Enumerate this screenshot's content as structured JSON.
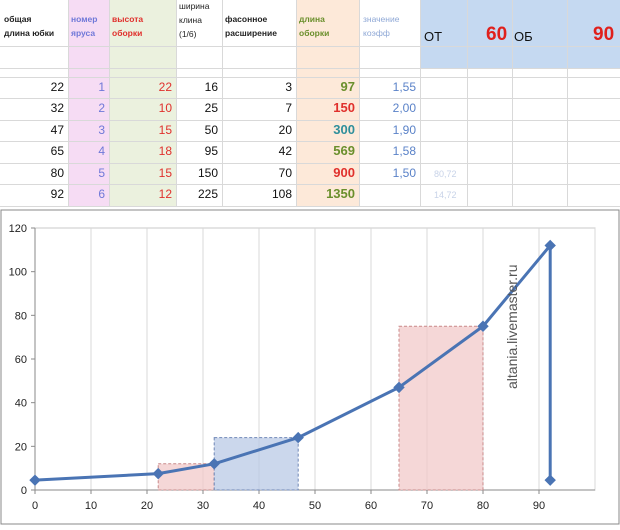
{
  "headers": {
    "col1": [
      "общая",
      "длина юбки"
    ],
    "col2": [
      "номер",
      "яруса"
    ],
    "col3": [
      "высота",
      "оборки"
    ],
    "col4": [
      "ширина",
      "клина",
      "(1/6)"
    ],
    "col5": [
      "фасонное",
      "расширение"
    ],
    "col6": [
      "длина",
      "оборки"
    ],
    "col7": [
      "значение",
      "коэфф"
    ]
  },
  "top_right": {
    "ot_label": "ОТ",
    "ot_value": "60",
    "ob_label": "ОБ",
    "ob_value": "90"
  },
  "rows": [
    {
      "length": "22",
      "tier": "1",
      "height": "22",
      "wedge": "16",
      "flare": "3",
      "ruffle": "97",
      "coef": "1,55"
    },
    {
      "length": "32",
      "tier": "2",
      "height": "10",
      "wedge": "25",
      "flare": "7",
      "ruffle": "150",
      "coef": "2,00"
    },
    {
      "length": "47",
      "tier": "3",
      "height": "15",
      "wedge": "50",
      "flare": "20",
      "ruffle": "300",
      "coef": "1,90"
    },
    {
      "length": "65",
      "tier": "4",
      "height": "18",
      "wedge": "95",
      "flare": "42",
      "ruffle": "569",
      "coef": "1,58"
    },
    {
      "length": "80",
      "tier": "5",
      "height": "15",
      "wedge": "150",
      "flare": "70",
      "ruffle": "900",
      "coef": "1,50"
    },
    {
      "length": "92",
      "tier": "6",
      "height": "12",
      "wedge": "225",
      "flare": "108",
      "ruffle": "1350",
      "coef": ""
    }
  ],
  "faint_cells": [
    "80,72",
    "14,72"
  ],
  "colors": {
    "tier_col": "#f6dcf4",
    "height_col": "#ebf1de",
    "ruffle_col": "#fde9d9",
    "header_blue": "#c5d9f1",
    "tier_text": "#6f78d8",
    "height_text": "#e0302c",
    "ruffle_olive": "#6a8f2c",
    "ruffle_red": "#e0302c",
    "ruffle_teal": "#2f8f9b",
    "coef_text": "#5a82c8",
    "line": "#4a74b4"
  },
  "watermark": "altania.livemaster.ru",
  "chart_data": {
    "type": "line",
    "x_ticks": [
      0,
      10,
      20,
      30,
      40,
      50,
      60,
      70,
      80,
      90
    ],
    "y_ticks": [
      0,
      20,
      40,
      60,
      80,
      100,
      120
    ],
    "xlim": [
      0,
      100
    ],
    "ylim": [
      0,
      120
    ],
    "series": [
      {
        "points": [
          [
            0,
            4.5
          ],
          [
            22,
            7.5
          ],
          [
            32,
            12
          ],
          [
            47,
            24
          ],
          [
            65,
            47
          ],
          [
            80,
            75
          ],
          [
            92,
            112
          ],
          [
            92,
            4.5
          ]
        ]
      }
    ],
    "rectangles": [
      {
        "x0": 22,
        "x1": 32,
        "y": 12,
        "fill": "#f2c9c9",
        "stroke": "#c98a8a"
      },
      {
        "x0": 32,
        "x1": 47,
        "y": 24,
        "fill": "#b9c9e6",
        "stroke": "#6f87b7"
      },
      {
        "x0": 65,
        "x1": 80,
        "y": 75,
        "fill": "#f2c9c9",
        "stroke": "#c98a8a"
      }
    ]
  }
}
